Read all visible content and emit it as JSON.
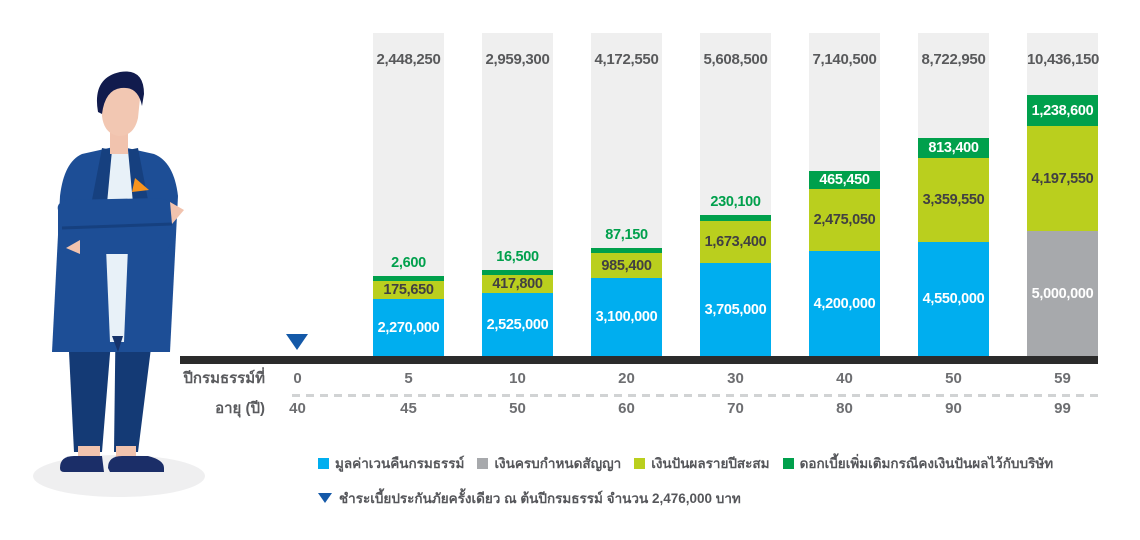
{
  "colors": {
    "surrender_blue": "#00AEEF",
    "maturity_gray": "#A7A9AC",
    "dividend_green": "#BACF1E",
    "interest_dark_green": "#00A04C",
    "column_background": "#EFEFEF",
    "axis_bar": "#2B2B2B",
    "total_text": "#58595B",
    "axis_text": "#6D6E71",
    "premium_marker_blue": "#1459A8"
  },
  "chart_data": {
    "type": "bar",
    "stacked": true,
    "grid": false,
    "legend_position": "bottom",
    "x_axis": {
      "policy_year_label": "ปีกรมธรรม์ที่",
      "age_label": "อายุ (ปี)",
      "policy_years": [
        "0",
        "5",
        "10",
        "20",
        "30",
        "40",
        "50",
        "59"
      ],
      "ages": [
        "40",
        "45",
        "50",
        "60",
        "70",
        "80",
        "90",
        "99"
      ]
    },
    "series": [
      {
        "key": "surrender",
        "name": "มูลค่าเวนคืนกรมธรรม์",
        "color": "#00AEEF"
      },
      {
        "key": "maturity",
        "name": "เงินครบกำหนดสัญญา",
        "color": "#A7A9AC"
      },
      {
        "key": "dividend",
        "name": "เงินปันผลรายปีสะสม",
        "color": "#BACF1E"
      },
      {
        "key": "interest",
        "name": "ดอกเบี้ยเพิ่มเติมกรณีคงเงินปันผลไว้กับบริษัท",
        "color": "#00A04C"
      }
    ],
    "bars": [
      {
        "policy_year": "5",
        "age": "45",
        "total": 2448250,
        "surrender": 2270000,
        "maturity": 0,
        "dividend": 175650,
        "interest": 2600
      },
      {
        "policy_year": "10",
        "age": "50",
        "total": 2959300,
        "surrender": 2525000,
        "maturity": 0,
        "dividend": 417800,
        "interest": 16500
      },
      {
        "policy_year": "20",
        "age": "60",
        "total": 4172550,
        "surrender": 3100000,
        "maturity": 0,
        "dividend": 985400,
        "interest": 87150
      },
      {
        "policy_year": "30",
        "age": "70",
        "total": 5608500,
        "surrender": 3705000,
        "maturity": 0,
        "dividend": 1673400,
        "interest": 230100
      },
      {
        "policy_year": "40",
        "age": "80",
        "total": 7140500,
        "surrender": 4200000,
        "maturity": 0,
        "dividend": 2475050,
        "interest": 465450
      },
      {
        "policy_year": "50",
        "age": "90",
        "total": 8722950,
        "surrender": 4550000,
        "maturity": 0,
        "dividend": 3359550,
        "interest": 813400
      },
      {
        "policy_year": "59",
        "age": "99",
        "total": 10436150,
        "surrender": 0,
        "maturity": 5000000,
        "dividend": 4197550,
        "interest": 1238600
      }
    ],
    "premium_marker": {
      "policy_year": "0",
      "amount": 2476000,
      "note": "ชำระเบี้ยประกันภัยครั้งเดียว ณ ต้นปีกรมธรรม์ จำนวน 2,476,000 บาท"
    }
  },
  "legend": {
    "premium_note": "ชำระเบี้ยประกันภัยครั้งเดียว ณ ต้นปีกรมธรรม์ จำนวน 2,476,000 บาท"
  },
  "illustration": {
    "name": "businessman-arms-crossed"
  }
}
